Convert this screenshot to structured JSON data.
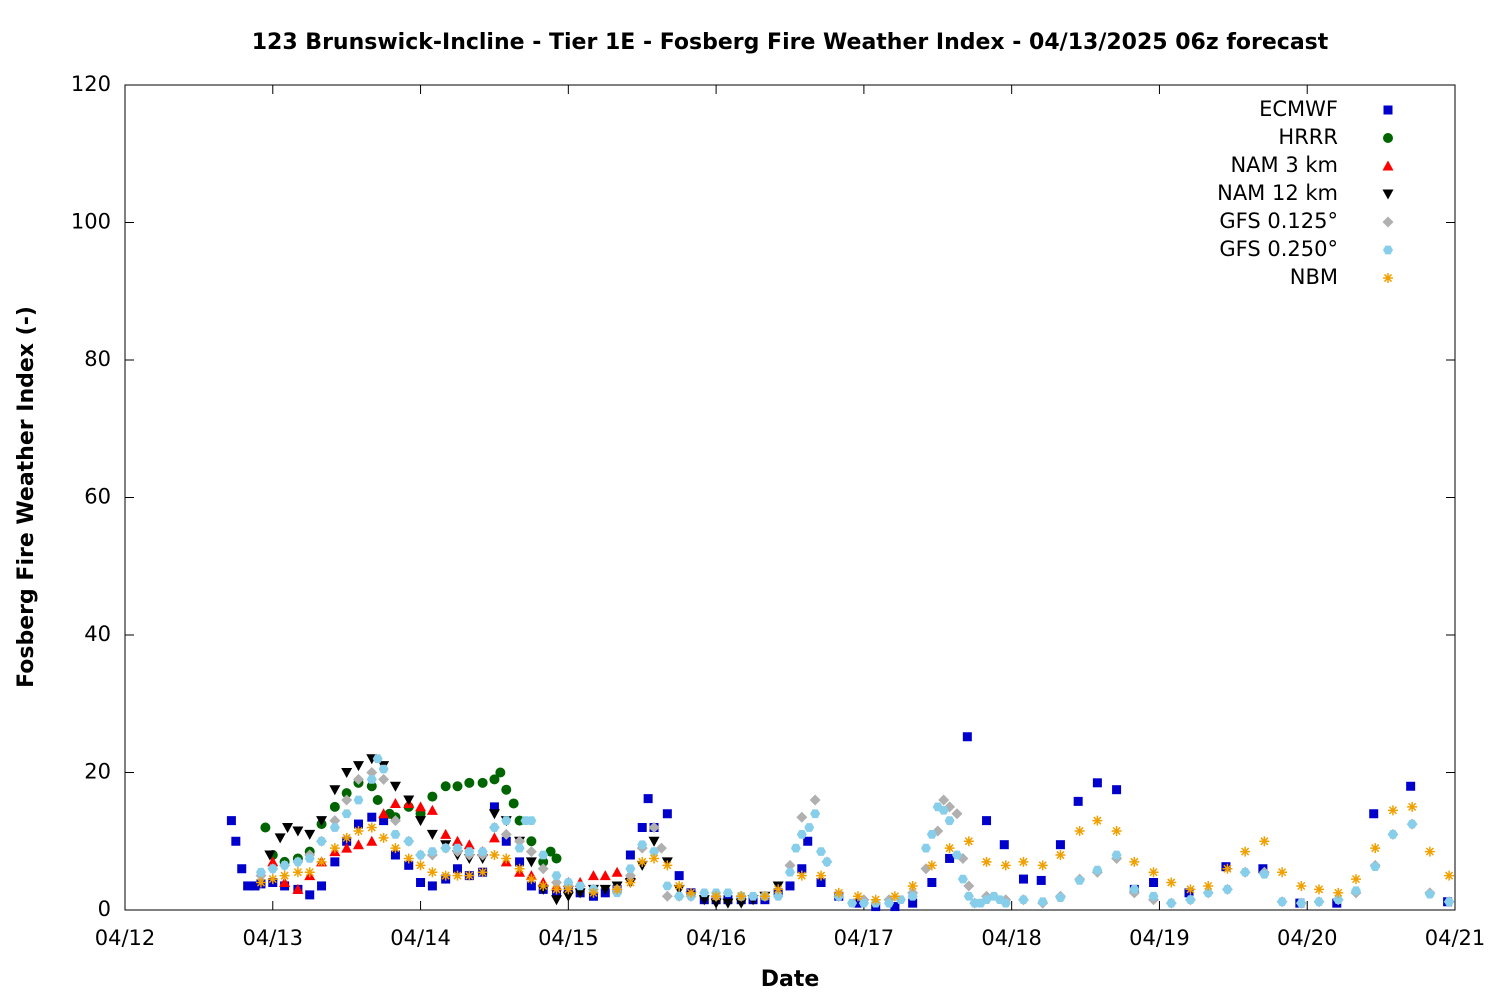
{
  "chart_data": {
    "type": "scatter",
    "title": "123 Brunswick-Incline - Tier 1E - Fosberg Fire Weather Index - 04/13/2025 06z forecast",
    "x_label": "Date",
    "y_label": "Fosberg Fire Weather Index (-)",
    "xlim": [
      12,
      21
    ],
    "xticks": [
      {
        "value": 12,
        "label": "04/12"
      },
      {
        "value": 13,
        "label": "04/13"
      },
      {
        "value": 14,
        "label": "04/14"
      },
      {
        "value": 15,
        "label": "04/15"
      },
      {
        "value": 16,
        "label": "04/16"
      },
      {
        "value": 17,
        "label": "04/17"
      },
      {
        "value": 18,
        "label": "04/18"
      },
      {
        "value": 19,
        "label": "04/19"
      },
      {
        "value": 20,
        "label": "04/20"
      },
      {
        "value": 21,
        "label": "04/21"
      }
    ],
    "ylim": [
      0,
      120
    ],
    "yticks": [
      0,
      20,
      40,
      60,
      80,
      100,
      120
    ],
    "legend": "top-right",
    "series": [
      {
        "name": "ECMWF",
        "color": "#0000cc",
        "marker": "square",
        "x": [
          12.72,
          12.75,
          12.79,
          12.83,
          12.88,
          12.92,
          13.0,
          13.08,
          13.17,
          13.25,
          13.33,
          13.42,
          13.5,
          13.58,
          13.67,
          13.75,
          13.83,
          13.92,
          14.0,
          14.08,
          14.17,
          14.25,
          14.33,
          14.42,
          14.5,
          14.58,
          14.67,
          14.75,
          14.83,
          14.92,
          15.0,
          15.08,
          15.17,
          15.25,
          15.33,
          15.42,
          15.5,
          15.54,
          15.58,
          15.67,
          15.75,
          15.83,
          15.92,
          16.0,
          16.08,
          16.17,
          16.25,
          16.33,
          16.42,
          16.5,
          16.58,
          16.62,
          16.71,
          16.83,
          16.96,
          17.08,
          17.21,
          17.33,
          17.46,
          17.58,
          17.7,
          17.83,
          17.95,
          18.08,
          18.2,
          18.33,
          18.45,
          18.58,
          18.71,
          18.83,
          18.96,
          19.2,
          19.45,
          19.7,
          19.95,
          20.2,
          20.45,
          20.7,
          20.95
        ],
        "values": [
          13,
          10,
          6,
          3.5,
          3.5,
          3.8,
          4,
          3.5,
          3,
          2.2,
          3.5,
          7,
          10,
          12.5,
          13.5,
          13,
          8,
          6.5,
          4,
          3.5,
          4.5,
          6,
          5,
          5.5,
          15,
          10,
          7,
          3.5,
          3,
          2.5,
          3,
          2.5,
          2,
          2.5,
          3,
          8,
          12,
          16.2,
          12,
          14,
          5,
          2.5,
          1.5,
          1.5,
          1.5,
          1.5,
          1.5,
          1.5,
          2.5,
          3.5,
          6,
          10,
          4,
          2,
          1,
          0.5,
          0.5,
          1,
          4,
          7.5,
          25.2,
          13,
          9.5,
          4.5,
          4.3,
          9.5,
          15.8,
          18.5,
          17.5,
          3,
          4,
          2.5,
          6.3,
          6,
          1,
          1,
          14,
          18,
          1.2
        ]
      },
      {
        "name": "HRRR",
        "color": "#006400",
        "marker": "circle",
        "x": [
          12.95,
          13.0,
          13.08,
          13.17,
          13.25,
          13.33,
          13.42,
          13.5,
          13.58,
          13.67,
          13.71,
          13.79,
          13.83,
          13.92,
          14.0,
          14.08,
          14.17,
          14.25,
          14.33,
          14.42,
          14.5,
          14.54,
          14.58,
          14.63,
          14.67,
          14.75,
          14.83,
          14.88,
          14.92
        ],
        "values": [
          12,
          8,
          7,
          7.5,
          8.5,
          12.5,
          15,
          17,
          18.5,
          18,
          16,
          14,
          13.5,
          15,
          14,
          16.5,
          18,
          18,
          18.5,
          18.5,
          19,
          20,
          17.5,
          15.5,
          13,
          10,
          7,
          8.5,
          7.5
        ]
      },
      {
        "name": "NAM 3 km",
        "color": "#ff0000",
        "marker": "triangle-up",
        "x": [
          13.0,
          13.08,
          13.17,
          13.25,
          13.33,
          13.42,
          13.5,
          13.58,
          13.67,
          13.75,
          13.83,
          13.92,
          14.0,
          14.08,
          14.17,
          14.25,
          14.33,
          14.42,
          14.5,
          14.58,
          14.67,
          14.75,
          14.83,
          14.92,
          15.0,
          15.08,
          15.17,
          15.25,
          15.33,
          15.42
        ],
        "values": [
          7,
          4,
          3,
          5,
          7,
          8.5,
          9,
          9.5,
          10,
          14,
          15.5,
          15.5,
          15,
          14.5,
          11,
          10,
          9.5,
          8.5,
          10.5,
          7,
          5.5,
          5,
          4,
          3.5,
          4,
          4,
          5,
          5,
          5.5,
          5
        ]
      },
      {
        "name": "NAM 12 km",
        "color": "#000000",
        "marker": "triangle-down",
        "x": [
          12.98,
          13.05,
          13.1,
          13.17,
          13.25,
          13.33,
          13.42,
          13.5,
          13.58,
          13.67,
          13.75,
          13.83,
          13.92,
          14.0,
          14.08,
          14.17,
          14.25,
          14.33,
          14.42,
          14.5,
          14.58,
          14.67,
          14.75,
          14.83,
          14.92,
          15.0,
          15.08,
          15.17,
          15.25,
          15.33,
          15.42,
          15.5,
          15.58,
          15.67,
          15.75,
          15.83,
          15.92,
          16.0,
          16.08,
          16.17,
          16.25,
          16.33,
          16.42
        ],
        "values": [
          8,
          10.5,
          12,
          11.5,
          11,
          13,
          17.5,
          20,
          21,
          22,
          21,
          18,
          16,
          13,
          11,
          9.5,
          8,
          7.5,
          7.5,
          14,
          13,
          10,
          7,
          3,
          1.5,
          2,
          2.5,
          3,
          3,
          3.5,
          4,
          6.5,
          10,
          7,
          3,
          2,
          1.5,
          1,
          1,
          1,
          1.5,
          2,
          3.5
        ]
      },
      {
        "name": "GFS 0.125°",
        "color": "#b0b0b0",
        "marker": "diamond",
        "x": [
          12.92,
          13.0,
          13.08,
          13.17,
          13.25,
          13.33,
          13.42,
          13.5,
          13.58,
          13.67,
          13.75,
          13.83,
          13.92,
          14.0,
          14.08,
          14.17,
          14.25,
          14.33,
          14.42,
          14.5,
          14.58,
          14.67,
          14.75,
          14.83,
          14.92,
          15.0,
          15.17,
          15.33,
          15.42,
          15.5,
          15.58,
          15.63,
          15.67,
          15.75,
          15.83,
          16.0,
          16.17,
          16.33,
          16.5,
          16.58,
          16.67,
          16.75,
          16.83,
          17.0,
          17.17,
          17.33,
          17.42,
          17.5,
          17.54,
          17.58,
          17.63,
          17.67,
          17.71,
          17.75,
          17.83,
          17.96,
          18.08,
          18.21,
          18.33,
          18.46,
          18.58,
          18.71,
          18.83,
          18.96,
          19.08,
          19.21,
          19.33,
          19.46,
          19.58,
          19.71,
          19.83,
          19.96,
          20.08,
          20.21,
          20.33,
          20.46,
          20.58,
          20.71,
          20.83,
          20.96
        ],
        "values": [
          5,
          6,
          6.5,
          7,
          8,
          10,
          13,
          16,
          19,
          20,
          19,
          13,
          10,
          8,
          8,
          9,
          8.5,
          8,
          8,
          12,
          11,
          10,
          8.5,
          6,
          4,
          3.5,
          3,
          3,
          5,
          9,
          12,
          9,
          2,
          2,
          2,
          2,
          2,
          2,
          6.5,
          13.5,
          16,
          7,
          2,
          1.5,
          1.5,
          2.5,
          6,
          11.5,
          16,
          15,
          14,
          7.5,
          3.5,
          1,
          2,
          1.5,
          1.5,
          1,
          2,
          4.5,
          5.5,
          7.5,
          2.5,
          1.5,
          1,
          1.5,
          2.5,
          3,
          5.5,
          5.5,
          1.2,
          1,
          1.2,
          1.5,
          2.5,
          6.5,
          11,
          12.5,
          2.5,
          1.2
        ]
      },
      {
        "name": "GFS 0.250°",
        "color": "#87ceeb",
        "marker": "hexagon",
        "x": [
          12.92,
          13.0,
          13.08,
          13.17,
          13.25,
          13.33,
          13.42,
          13.5,
          13.58,
          13.67,
          13.71,
          13.75,
          13.83,
          13.92,
          14.0,
          14.08,
          14.17,
          14.25,
          14.33,
          14.42,
          14.5,
          14.58,
          14.67,
          14.71,
          14.75,
          14.83,
          14.92,
          15.0,
          15.08,
          15.17,
          15.33,
          15.42,
          15.5,
          15.58,
          15.67,
          15.75,
          15.83,
          15.92,
          16.0,
          16.08,
          16.17,
          16.25,
          16.33,
          16.42,
          16.5,
          16.54,
          16.58,
          16.63,
          16.67,
          16.71,
          16.75,
          16.83,
          16.92,
          17.0,
          17.08,
          17.17,
          17.25,
          17.33,
          17.42,
          17.46,
          17.5,
          17.54,
          17.58,
          17.63,
          17.67,
          17.71,
          17.75,
          17.79,
          17.83,
          17.88,
          17.92,
          17.96,
          18.08,
          18.21,
          18.33,
          18.46,
          18.58,
          18.71,
          18.83,
          18.96,
          19.08,
          19.21,
          19.33,
          19.46,
          19.58,
          19.71,
          19.83,
          19.96,
          20.08,
          20.21,
          20.33,
          20.46,
          20.58,
          20.71,
          20.83,
          20.96
        ],
        "values": [
          5.5,
          6,
          6.5,
          7,
          7.5,
          10,
          12,
          14,
          16,
          19,
          22,
          20.5,
          11,
          10,
          8,
          8.5,
          9,
          9,
          8.5,
          8.5,
          12,
          13,
          9,
          13,
          13,
          8,
          5,
          4,
          3.5,
          3,
          2.5,
          6,
          9.5,
          8.5,
          3.5,
          2,
          2,
          2.5,
          2.5,
          2.5,
          2,
          2,
          2,
          2,
          5.5,
          9,
          11,
          12,
          14,
          8.5,
          7,
          2,
          1,
          1,
          1,
          1,
          1.5,
          2,
          9,
          11,
          15,
          14.5,
          13,
          8,
          4.5,
          2,
          1,
          1,
          1.5,
          2,
          1.5,
          1,
          1.5,
          1.2,
          1.8,
          4.3,
          5.8,
          8,
          3,
          2,
          1,
          1.5,
          2.5,
          3,
          5.5,
          5.2,
          1.2,
          1,
          1.2,
          1.5,
          2.8,
          6.3,
          11,
          12.5,
          2.3,
          1.2
        ]
      },
      {
        "name": "NBM",
        "color": "#f0a000",
        "marker": "star",
        "x": [
          12.92,
          13.0,
          13.08,
          13.17,
          13.25,
          13.33,
          13.42,
          13.5,
          13.58,
          13.67,
          13.75,
          13.83,
          13.92,
          14.0,
          14.08,
          14.17,
          14.25,
          14.33,
          14.42,
          14.5,
          14.58,
          14.67,
          14.75,
          14.83,
          14.92,
          15.0,
          15.17,
          15.33,
          15.42,
          15.5,
          15.58,
          15.67,
          15.75,
          15.83,
          16.0,
          16.17,
          16.33,
          16.42,
          16.58,
          16.71,
          16.83,
          16.96,
          17.08,
          17.21,
          17.33,
          17.46,
          17.58,
          17.71,
          17.83,
          17.96,
          18.08,
          18.21,
          18.33,
          18.46,
          18.58,
          18.71,
          18.83,
          18.96,
          19.08,
          19.21,
          19.33,
          19.46,
          19.58,
          19.71,
          19.83,
          19.96,
          20.08,
          20.21,
          20.33,
          20.46,
          20.58,
          20.71,
          20.83,
          20.96
        ],
        "values": [
          4,
          4.5,
          5,
          5.5,
          5.5,
          7,
          9,
          10.5,
          11.5,
          12,
          10.5,
          9,
          7.5,
          6.5,
          5.5,
          5,
          5,
          5,
          5.5,
          8,
          7.5,
          6,
          4.5,
          3.5,
          3,
          3,
          2.5,
          3,
          4,
          7,
          7.5,
          6.5,
          3.5,
          2.5,
          2,
          2,
          2,
          3,
          5,
          5,
          2.5,
          2,
          1.5,
          2,
          3.5,
          6.5,
          9,
          10,
          7,
          6.5,
          7,
          6.5,
          8,
          11.5,
          13,
          11.5,
          7,
          5.5,
          4,
          3,
          3.5,
          6,
          8.5,
          10,
          5.5,
          3.5,
          3,
          2.5,
          4.5,
          9,
          14.5,
          15,
          8.5,
          5
        ]
      }
    ]
  }
}
